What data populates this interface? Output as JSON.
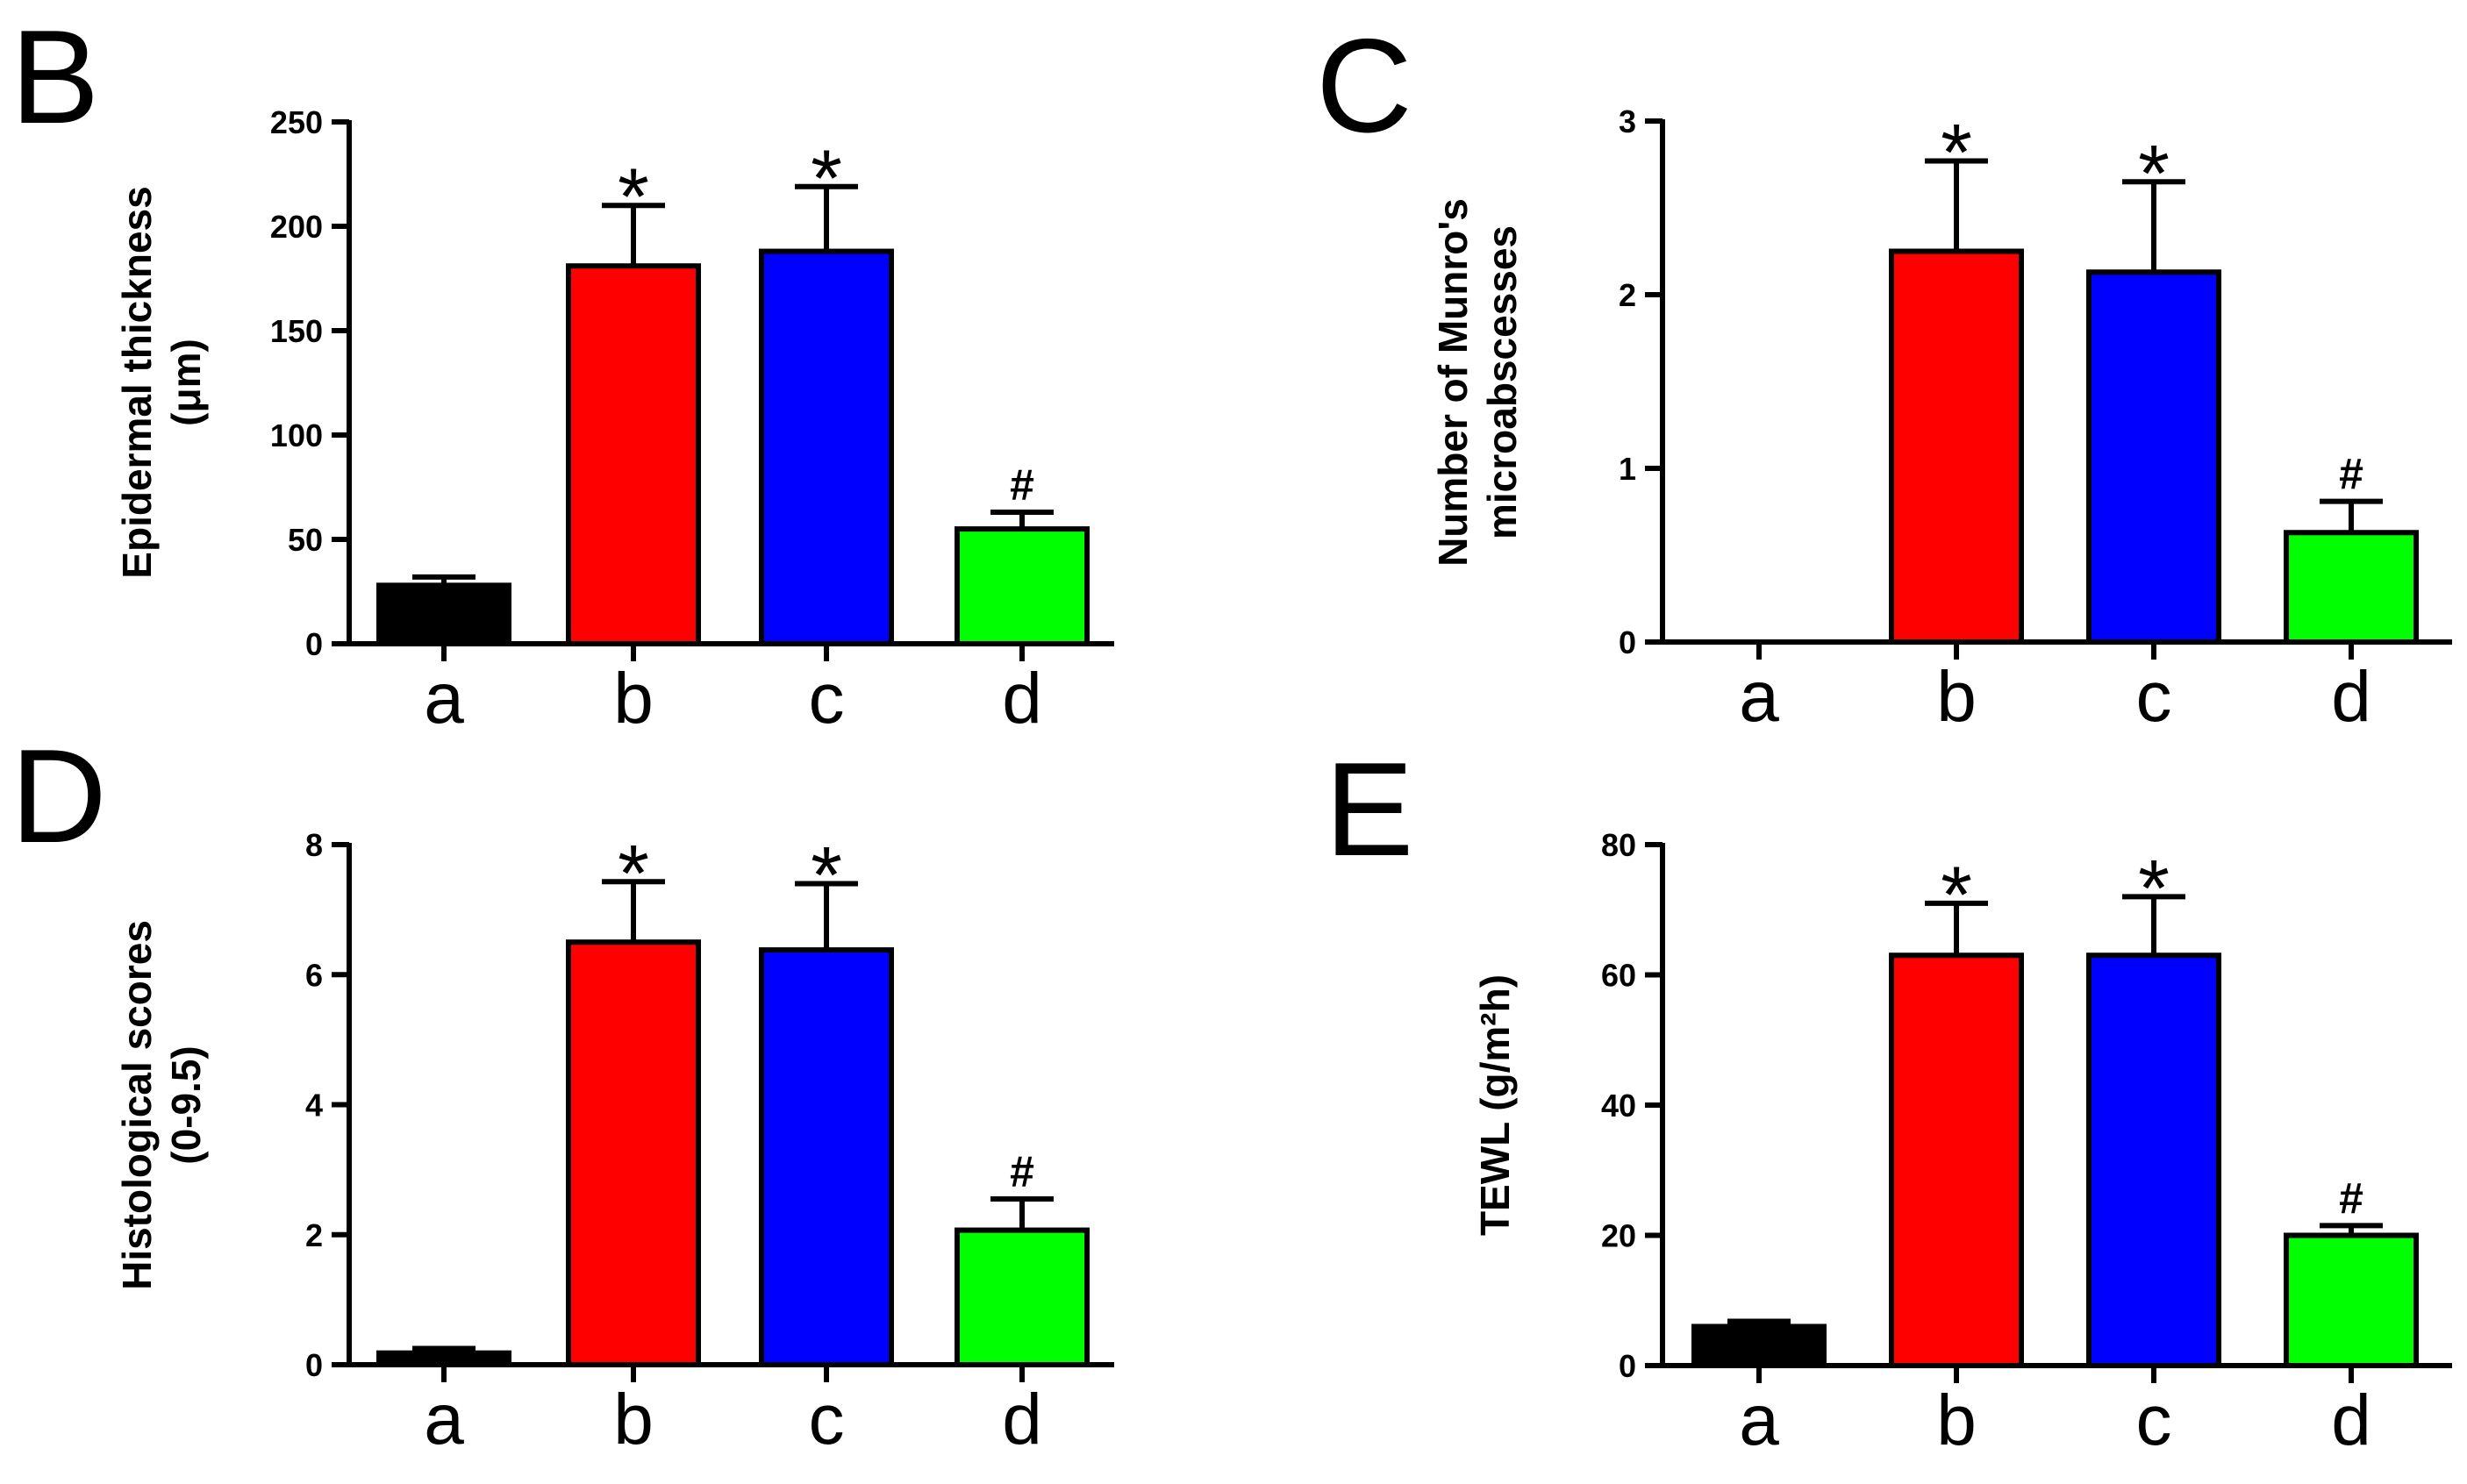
{
  "figure_title": "",
  "chart_data": [
    {
      "panel": "B",
      "type": "bar",
      "title": "",
      "xlabel": "",
      "ylabel_lines": [
        "Epidermal thickness",
        "(μm)"
      ],
      "categories": [
        "a",
        "b",
        "c",
        "d"
      ],
      "values": [
        28,
        181,
        188,
        55
      ],
      "error": [
        4,
        29,
        31,
        8
      ],
      "annotations": [
        "",
        "*",
        "*",
        "#"
      ],
      "colors": [
        "#000000",
        "#ff0000",
        "#0000ff",
        "#00ff00"
      ],
      "ylim": [
        0,
        250
      ],
      "yticks": [
        0,
        50,
        100,
        150,
        200,
        250
      ],
      "ytick_labels": [
        "0",
        "50",
        "100",
        "150",
        "200",
        "250"
      ]
    },
    {
      "panel": "C",
      "type": "bar",
      "title": "",
      "xlabel": "",
      "ylabel_lines": [
        "Number of Munro's",
        "microabscesses"
      ],
      "categories": [
        "a",
        "b",
        "c",
        "d"
      ],
      "values": [
        0,
        2.25,
        2.13,
        0.63
      ],
      "error": [
        0,
        0.52,
        0.52,
        0.18
      ],
      "annotations": [
        "",
        "*",
        "*",
        "#"
      ],
      "colors": [
        "#000000",
        "#ff0000",
        "#0000ff",
        "#00ff00"
      ],
      "ylim": [
        0,
        3
      ],
      "yticks": [
        0,
        1,
        2,
        3
      ],
      "ytick_labels": [
        "0",
        "1",
        "2",
        "3"
      ]
    },
    {
      "panel": "D",
      "type": "bar",
      "title": "",
      "xlabel": "",
      "ylabel_lines": [
        "Histological scores",
        "(0-9.5)"
      ],
      "categories": [
        "a",
        "b",
        "c",
        "d"
      ],
      "values": [
        0.18,
        6.5,
        6.38,
        2.07
      ],
      "error": [
        0.07,
        0.93,
        1.02,
        0.48
      ],
      "annotations": [
        "",
        "*",
        "*",
        "#"
      ],
      "colors": [
        "#000000",
        "#ff0000",
        "#0000ff",
        "#00ff00"
      ],
      "ylim": [
        0,
        8
      ],
      "yticks": [
        0,
        2,
        4,
        6,
        8
      ],
      "ytick_labels": [
        "0",
        "2",
        "4",
        "6",
        "8"
      ]
    },
    {
      "panel": "E",
      "type": "bar",
      "title": "",
      "xlabel": "",
      "ylabel_lines": [
        "TEWL (g/m²h)"
      ],
      "categories": [
        "a",
        "b",
        "c",
        "d"
      ],
      "values": [
        6,
        63,
        63,
        20
      ],
      "error": [
        0.8,
        8,
        9,
        1.5
      ],
      "annotations": [
        "",
        "*",
        "*",
        "#"
      ],
      "colors": [
        "#000000",
        "#ff0000",
        "#0000ff",
        "#00ff00"
      ],
      "ylim": [
        0,
        80
      ],
      "yticks": [
        0,
        20,
        40,
        60,
        80
      ],
      "ytick_labels": [
        "0",
        "20",
        "40",
        "60",
        "80"
      ]
    }
  ]
}
